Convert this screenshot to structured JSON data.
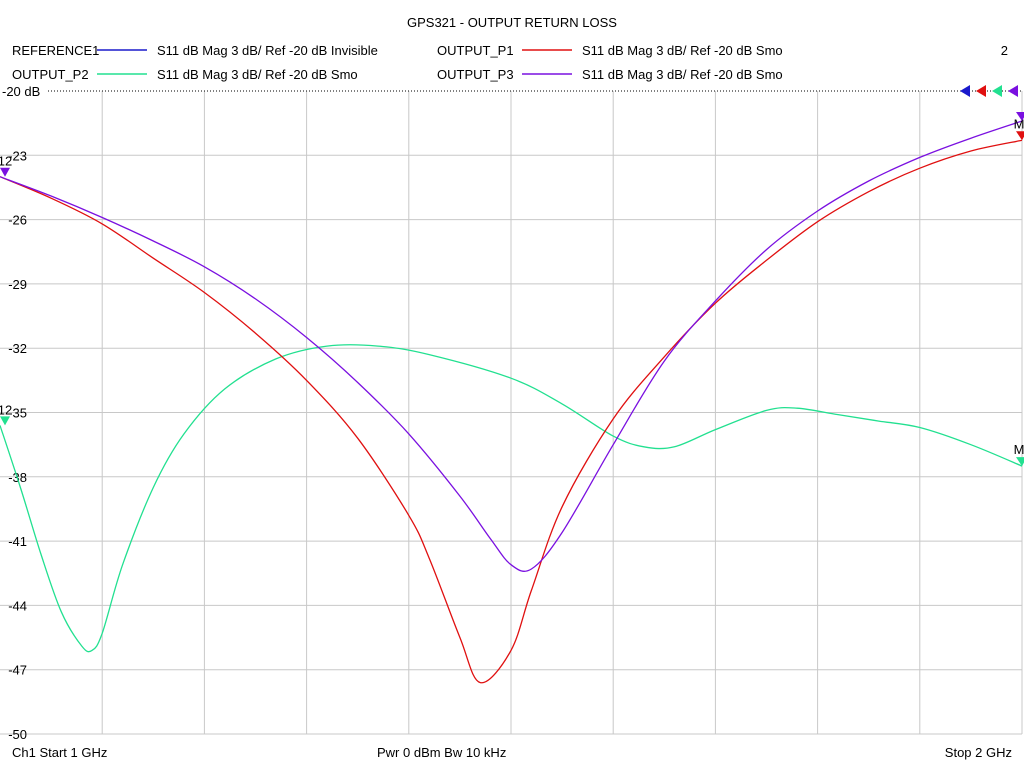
{
  "chart_data": {
    "type": "line",
    "title": "GPS321 - OUTPUT RETURN LOSS",
    "x_unit": "GHz",
    "xlim": [
      1,
      2
    ],
    "ylim": [
      -50,
      -20
    ],
    "y_ticks": [
      -20,
      -23,
      -26,
      -29,
      -32,
      -35,
      -38,
      -41,
      -44,
      -47,
      -50
    ],
    "y_tick_labels": [
      "-20 dB",
      "-23",
      "-26",
      "-29",
      "-32",
      "-35",
      "-38",
      "-41",
      "-44",
      "-47",
      "-50"
    ],
    "ref_label": "-20 dB",
    "legend": [
      {
        "name": "REFERENCE1",
        "desc": "S11  dB Mag  3 dB/ Ref -20 dB  Invisible",
        "color": "#1a1acc"
      },
      {
        "name": "OUTPUT_P1",
        "desc": "S11  dB Mag  3 dB/ Ref -20 dB  Smo",
        "color": "#e01010"
      },
      {
        "name": "OUTPUT_P2",
        "desc": "S11  dB Mag  3 dB/ Ref -20 dB  Smo",
        "color": "#22e090"
      },
      {
        "name": "OUTPUT_P3",
        "desc": "S11  dB Mag  3 dB/ Ref -20 dB  Smo",
        "color": "#7a10e0"
      }
    ],
    "legend_number": "2",
    "series": [
      {
        "name": "OUTPUT_P1",
        "color": "#e01010",
        "x": [
          1.0,
          1.05,
          1.1,
          1.15,
          1.2,
          1.25,
          1.3,
          1.35,
          1.4,
          1.42,
          1.45,
          1.47,
          1.5,
          1.52,
          1.55,
          1.6,
          1.65,
          1.7,
          1.75,
          1.8,
          1.85,
          1.9,
          1.95,
          2.0
        ],
        "y": [
          -24.0,
          -25.0,
          -26.2,
          -27.8,
          -29.4,
          -31.3,
          -33.5,
          -36.2,
          -39.8,
          -41.8,
          -45.5,
          -47.6,
          -46.1,
          -43.3,
          -39.4,
          -35.3,
          -32.4,
          -29.9,
          -27.9,
          -26.1,
          -24.7,
          -23.6,
          -22.8,
          -22.3
        ]
      },
      {
        "name": "OUTPUT_P2",
        "color": "#22e090",
        "x": [
          1.0,
          1.02,
          1.04,
          1.06,
          1.08,
          1.09,
          1.1,
          1.12,
          1.15,
          1.18,
          1.22,
          1.27,
          1.32,
          1.37,
          1.42,
          1.5,
          1.55,
          1.6,
          1.63,
          1.66,
          1.7,
          1.75,
          1.78,
          1.82,
          1.86,
          1.9,
          1.95,
          2.0
        ],
        "y": [
          -35.6,
          -38.5,
          -41.6,
          -44.3,
          -45.9,
          -46.1,
          -45.3,
          -42.1,
          -38.5,
          -36.0,
          -33.9,
          -32.5,
          -31.9,
          -31.9,
          -32.3,
          -33.4,
          -34.6,
          -36.1,
          -36.6,
          -36.6,
          -35.8,
          -34.9,
          -34.8,
          -35.1,
          -35.4,
          -35.7,
          -36.5,
          -37.5
        ]
      },
      {
        "name": "OUTPUT_P3",
        "color": "#7a10e0",
        "x": [
          1.0,
          1.05,
          1.1,
          1.15,
          1.2,
          1.25,
          1.3,
          1.35,
          1.4,
          1.45,
          1.48,
          1.5,
          1.52,
          1.55,
          1.6,
          1.65,
          1.7,
          1.75,
          1.8,
          1.85,
          1.9,
          1.95,
          2.0
        ],
        "y": [
          -24.0,
          -24.9,
          -25.9,
          -27.0,
          -28.2,
          -29.7,
          -31.5,
          -33.6,
          -36.0,
          -38.9,
          -40.9,
          -42.1,
          -42.3,
          -40.6,
          -36.5,
          -32.6,
          -29.8,
          -27.4,
          -25.6,
          -24.2,
          -23.1,
          -22.2,
          -21.4
        ]
      }
    ],
    "markers": [
      {
        "series": "OUTPUT_P1",
        "label": "M",
        "x": 2.0,
        "y": -22.3
      },
      {
        "series": "OUTPUT_P2",
        "label": "M",
        "x": 2.0,
        "y": -37.5
      },
      {
        "series": "OUTPUT_P3",
        "label": "",
        "x": 2.0,
        "y": -21.4
      }
    ],
    "left_markers": [
      {
        "series": "OUTPUT_P3",
        "label": "12",
        "y": -24.0
      },
      {
        "series": "OUTPUT_P2",
        "label": "12",
        "y": -35.6
      }
    ],
    "ref_arrow_colors": [
      "#1a1acc",
      "#e01010",
      "#22e090",
      "#7a10e0"
    ],
    "grid": true,
    "grid_x_divisions": 10,
    "footer": {
      "left": "Ch1  Start  1 GHz",
      "center": "Pwr  0 dBm  Bw  10 kHz",
      "right": "Stop  2 GHz"
    }
  }
}
